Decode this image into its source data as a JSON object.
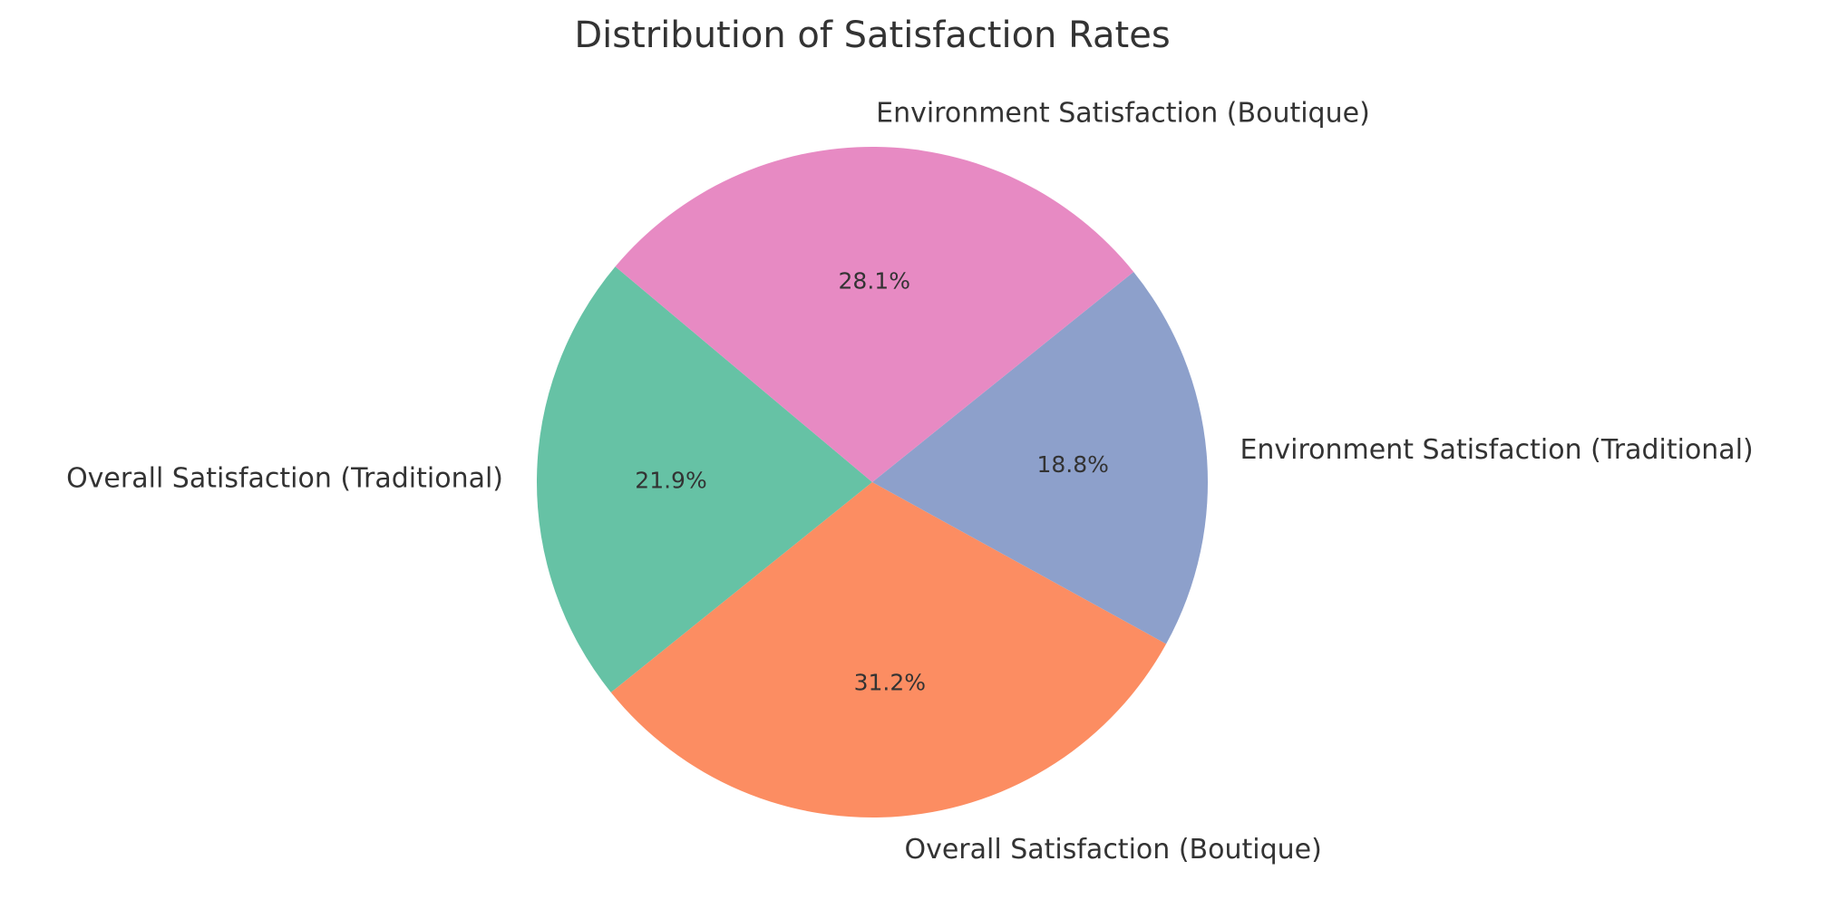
{
  "chart_data": {
    "type": "pie",
    "title": "Distribution of Satisfaction Rates",
    "start_angle_deg": 140,
    "direction": "counterclockwise",
    "slices": [
      {
        "label": "Overall Satisfaction (Traditional)",
        "percent_label": "21.9%",
        "value": 21.9,
        "color": "#66c2a5"
      },
      {
        "label": "Overall Satisfaction (Boutique)",
        "percent_label": "31.2%",
        "value": 31.2,
        "color": "#fc8d62"
      },
      {
        "label": "Environment Satisfaction (Traditional)",
        "percent_label": "18.8%",
        "value": 18.8,
        "color": "#8da0cb"
      },
      {
        "label": "Environment Satisfaction (Boutique)",
        "percent_label": "28.1%",
        "value": 28.1,
        "color": "#e78ac3"
      }
    ]
  }
}
